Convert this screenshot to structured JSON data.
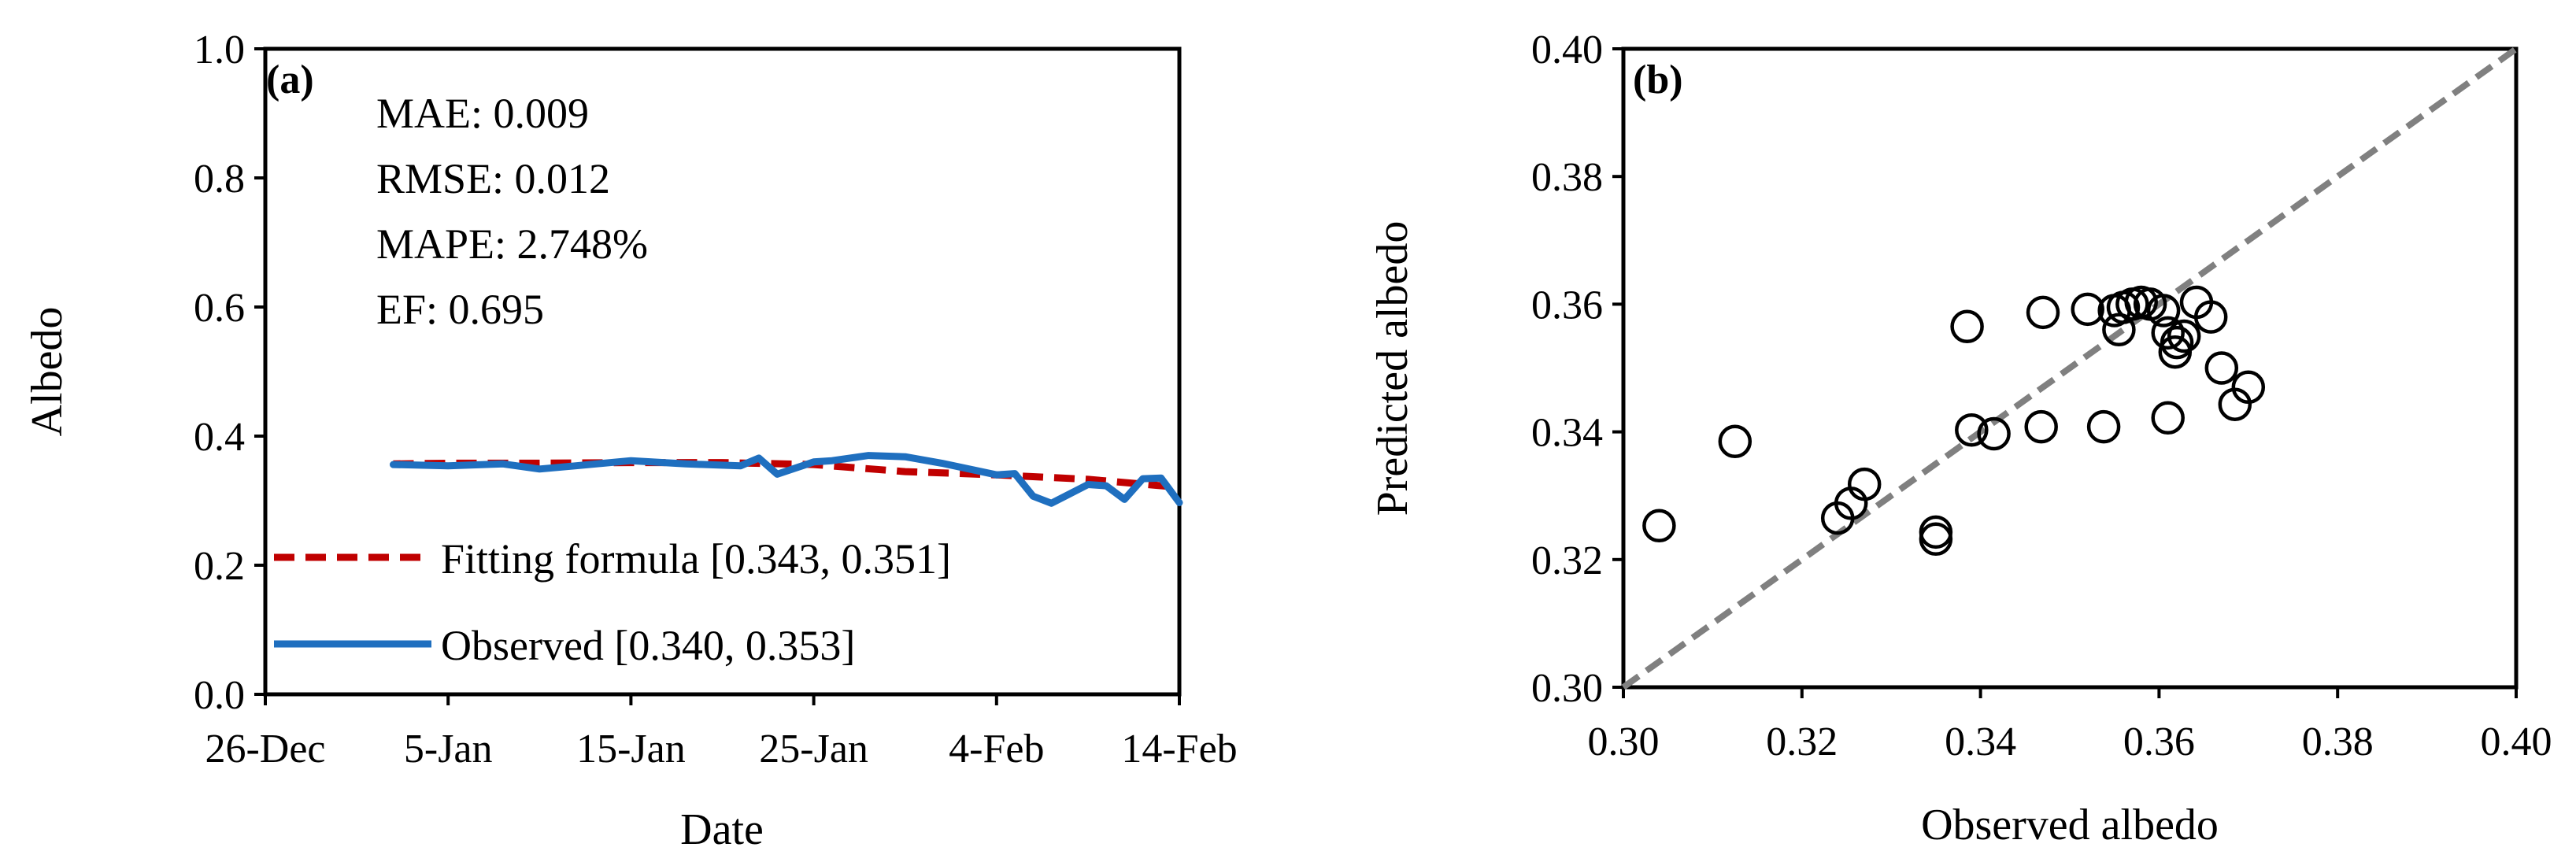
{
  "chart_data": [
    {
      "panel_label": "(a)",
      "type": "line",
      "xlabel": "Date",
      "ylabel": "Albedo",
      "x_ticks": [
        "26-Dec",
        "5-Jan",
        "15-Jan",
        "25-Jan",
        "4-Feb",
        "14-Feb"
      ],
      "y_ticks": [
        "0.0",
        "0.2",
        "0.4",
        "0.6",
        "0.8",
        "1.0"
      ],
      "xlim": [
        0,
        50
      ],
      "ylim": [
        0,
        1
      ],
      "x_unit": "days since 26-Dec",
      "stats": [
        "MAE: 0.009",
        "RMSE: 0.012",
        "MAPE: 2.748%",
        "EF: 0.695"
      ],
      "legend_position": "bottom-right",
      "series": [
        {
          "name": "Fitting formula [0.343, 0.351]",
          "style": "dashed",
          "color": "#c00000",
          "x": [
            7,
            10,
            15,
            20,
            25,
            30,
            35,
            40,
            45,
            49.5
          ],
          "y": [
            0.357,
            0.358,
            0.358,
            0.359,
            0.359,
            0.356,
            0.345,
            0.34,
            0.333,
            0.322
          ]
        },
        {
          "name": "Observed [0.340, 0.353]",
          "style": "solid",
          "color": "#1f6fbf",
          "x": [
            7,
            10,
            13,
            15,
            17,
            20,
            23,
            26,
            27,
            28,
            30,
            31,
            33,
            35,
            37,
            40,
            41,
            42,
            43,
            45,
            46,
            47,
            48,
            49,
            50
          ],
          "y": [
            0.356,
            0.354,
            0.357,
            0.349,
            0.354,
            0.362,
            0.357,
            0.354,
            0.366,
            0.341,
            0.36,
            0.362,
            0.37,
            0.368,
            0.358,
            0.34,
            0.342,
            0.307,
            0.296,
            0.325,
            0.323,
            0.302,
            0.334,
            0.335,
            0.297
          ]
        }
      ]
    },
    {
      "panel_label": "(b)",
      "type": "scatter",
      "xlabel": "Observed albedo",
      "ylabel": "Predicted albedo",
      "x_ticks": [
        "0.30",
        "0.32",
        "0.34",
        "0.36",
        "0.38",
        "0.40"
      ],
      "y_ticks": [
        "0.30",
        "0.32",
        "0.34",
        "0.36",
        "0.38",
        "0.40"
      ],
      "xlim": [
        0.3,
        0.4
      ],
      "ylim": [
        0.3,
        0.4
      ],
      "reference_line": "1:1",
      "reference_line_color": "#808080",
      "marker": "open circle",
      "x": [
        0.304,
        0.3125,
        0.324,
        0.3255,
        0.327,
        0.335,
        0.335,
        0.3385,
        0.339,
        0.3415,
        0.3468,
        0.347,
        0.352,
        0.3538,
        0.355,
        0.3555,
        0.356,
        0.357,
        0.358,
        0.359,
        0.3605,
        0.361,
        0.361,
        0.3618,
        0.362,
        0.3628,
        0.3642,
        0.3658,
        0.367,
        0.3685,
        0.37
      ],
      "y": [
        0.3253,
        0.3385,
        0.3265,
        0.3288,
        0.3318,
        0.3243,
        0.3232,
        0.3565,
        0.3403,
        0.3397,
        0.3408,
        0.3587,
        0.3592,
        0.3408,
        0.359,
        0.356,
        0.3595,
        0.36,
        0.3603,
        0.36,
        0.359,
        0.3422,
        0.3555,
        0.3525,
        0.354,
        0.355,
        0.3603,
        0.358,
        0.35,
        0.3443,
        0.347
      ]
    }
  ]
}
